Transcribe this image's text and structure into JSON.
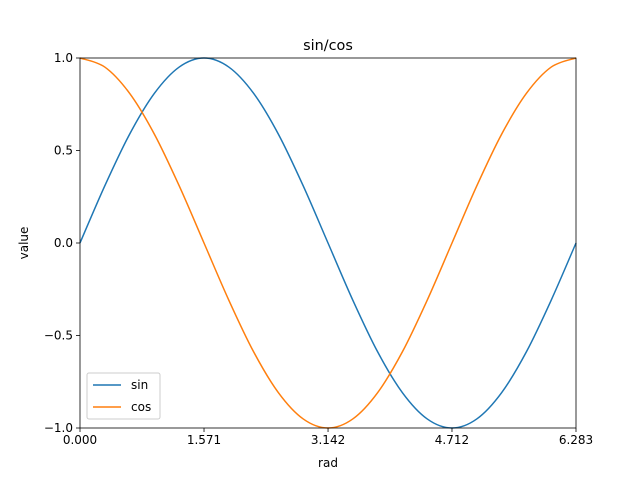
{
  "chart_data": {
    "type": "line",
    "title": "sin/cos",
    "xlabel": "rad",
    "ylabel": "value",
    "xlim": [
      0,
      6.283
    ],
    "ylim": [
      -1.0,
      1.0
    ],
    "x_ticks": [
      0,
      1.571,
      3.142,
      4.712,
      6.283
    ],
    "x_tick_labels": [
      "0.000",
      "1.571",
      "3.142",
      "4.712",
      "6.283"
    ],
    "y_ticks": [
      1.0,
      0.5,
      0.0,
      -0.5,
      -1.0
    ],
    "y_tick_labels": [
      "1.0",
      "0.5",
      "0.0",
      "−0.5",
      "−1.0"
    ],
    "grid": false,
    "legend_position": "lower-left",
    "x": [
      0,
      0.3142,
      0.6283,
      0.9425,
      1.2566,
      1.5708,
      1.885,
      2.1991,
      2.5133,
      2.8274,
      3.1416,
      3.4558,
      3.7699,
      4.0841,
      4.3982,
      4.7124,
      5.0265,
      5.3407,
      5.6549,
      5.969,
      6.2832
    ],
    "series": [
      {
        "name": "sin",
        "color": "#1f77b4",
        "values": [
          0,
          0.309,
          0.588,
          0.809,
          0.951,
          1.0,
          0.951,
          0.809,
          0.588,
          0.309,
          0,
          -0.309,
          -0.588,
          -0.809,
          -0.951,
          -1.0,
          -0.951,
          -0.809,
          -0.588,
          -0.309,
          0
        ]
      },
      {
        "name": "cos",
        "color": "#ff7f0e",
        "values": [
          1.0,
          0.951,
          0.809,
          0.588,
          0.309,
          0,
          -0.309,
          -0.588,
          -0.809,
          -0.951,
          -1.0,
          -0.951,
          -0.809,
          -0.588,
          -0.309,
          0,
          0.309,
          0.588,
          0.809,
          0.951,
          1.0
        ]
      }
    ]
  }
}
